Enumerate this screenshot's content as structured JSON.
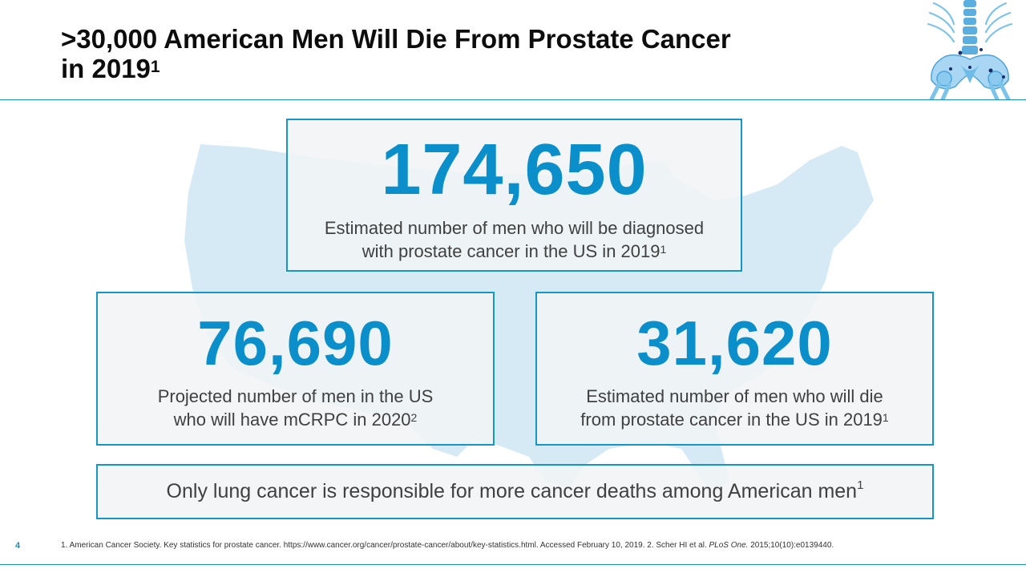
{
  "slide": {
    "title_line1": ">30,000 American Men Will Die From Prostate Cancer",
    "title_line2": "in 2019",
    "title_sup": "1",
    "page_number": "4"
  },
  "colors": {
    "accent": "#1596c6",
    "number": "#0a8fcb",
    "map": "#cfe6f5"
  },
  "images": {
    "header": "skeleton-pelvis-illustration",
    "background": "us-map-silhouette"
  },
  "stats": {
    "top": {
      "value": "174,650",
      "line1": "Estimated number of men who will be diagnosed",
      "line2": "with prostate cancer in the US in 2019",
      "sup": "1"
    },
    "left": {
      "value": "76,690",
      "line1": "Projected number of men in the US",
      "line2": "who will have mCRPC in 2020",
      "sup": "2"
    },
    "right": {
      "value": "31,620",
      "line1": "Estimated number of men who will die",
      "line2": "from prostate cancer in the US in 2019",
      "sup": "1"
    }
  },
  "callout": {
    "text": "Only lung cancer is responsible for more cancer deaths among American men",
    "sup": "1"
  },
  "footnote": {
    "part1": "1. American Cancer Society. Key statistics for prostate cancer. https://www.cancer.org/cancer/prostate-cancer/about/key-statistics.html. Accessed February 10, 2019. 2. Scher HI et al. ",
    "journal": "PLoS One.",
    "part2": " 2015;10(10):e0139440."
  }
}
